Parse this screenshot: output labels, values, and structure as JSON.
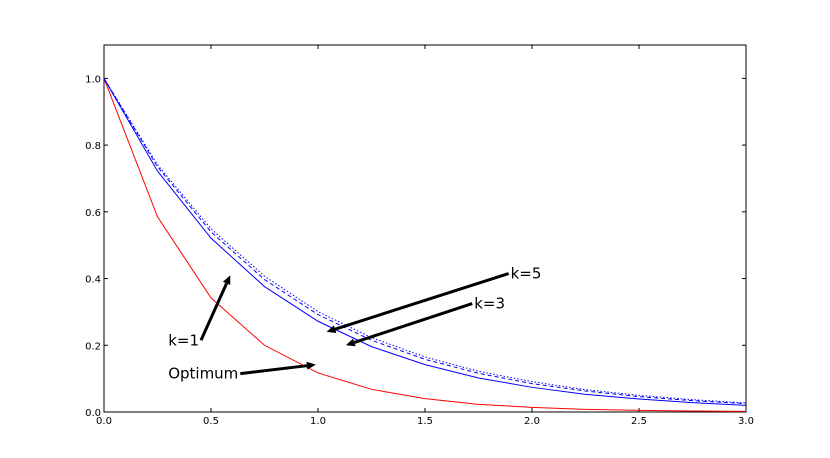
{
  "chart_data": {
    "type": "line",
    "title": "",
    "xlabel": "",
    "ylabel": "",
    "xlim": [
      0.0,
      3.0
    ],
    "ylim": [
      0.0,
      1.1
    ],
    "grid": false,
    "x_ticks": [
      "0.0",
      "0.5",
      "1.0",
      "1.5",
      "2.0",
      "2.5",
      "3.0"
    ],
    "y_ticks": [
      "0.0",
      "0.2",
      "0.4",
      "0.6",
      "0.8",
      "1.0"
    ],
    "x": [
      0.0,
      0.25,
      0.5,
      0.75,
      1.0,
      1.25,
      1.5,
      1.75,
      2.0,
      2.25,
      2.5,
      2.75,
      3.0
    ],
    "series": [
      {
        "key": "optimum",
        "color": "#ff0000",
        "style": "solid",
        "values": [
          1.0,
          0.585,
          0.342,
          0.2,
          0.117,
          0.068,
          0.04,
          0.023,
          0.014,
          0.008,
          0.005,
          0.003,
          0.002
        ]
      },
      {
        "key": "k1",
        "color": "#0000ff",
        "style": "solid",
        "values": [
          1.0,
          0.722,
          0.521,
          0.376,
          0.272,
          0.196,
          0.142,
          0.102,
          0.074,
          0.053,
          0.039,
          0.028,
          0.02
        ]
      },
      {
        "key": "k3",
        "color": "#0000ff",
        "style": "dashed",
        "values": [
          1.0,
          0.735,
          0.54,
          0.397,
          0.292,
          0.215,
          0.158,
          0.116,
          0.085,
          0.063,
          0.046,
          0.034,
          0.025
        ]
      },
      {
        "key": "k5",
        "color": "#0000ff",
        "style": "dotted",
        "values": [
          1.0,
          0.741,
          0.549,
          0.407,
          0.301,
          0.223,
          0.165,
          0.122,
          0.091,
          0.067,
          0.05,
          0.037,
          0.027
        ]
      }
    ],
    "annotations": [
      {
        "text": "k=5",
        "text_x": 1.9,
        "text_y": 0.4,
        "tip_x": 1.04,
        "tip_y": 0.24
      },
      {
        "text": "k=3",
        "text_x": 1.73,
        "text_y": 0.31,
        "tip_x": 1.13,
        "tip_y": 0.2
      },
      {
        "text": "k=1",
        "text_x": 0.3,
        "text_y": 0.2,
        "tip_x": 0.59,
        "tip_y": 0.41
      },
      {
        "text": "Optimum",
        "text_x": 0.3,
        "text_y": 0.1,
        "tip_x": 0.99,
        "tip_y": 0.142
      }
    ]
  }
}
